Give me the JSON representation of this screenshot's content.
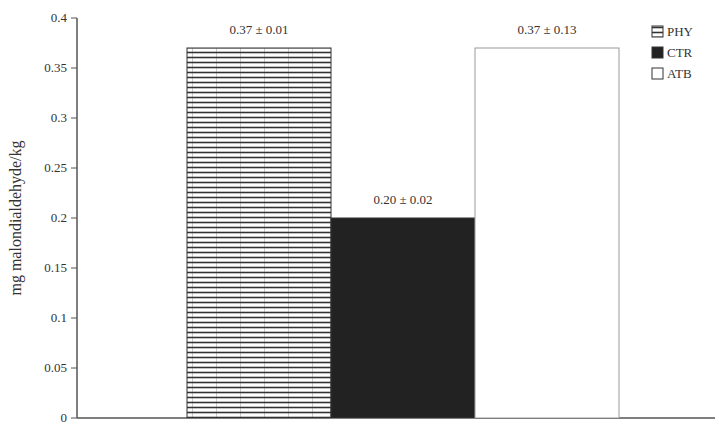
{
  "chart_data": {
    "type": "bar",
    "y_label": "mg malondialdehyde/kg",
    "categories": [
      "PHY",
      "CTR",
      "ATB"
    ],
    "values": [
      0.37,
      0.2,
      0.37
    ],
    "value_labels": [
      "0.37 ± 0.01",
      "0.20 ± 0.02",
      "0.37 ± 0.13"
    ],
    "colors": [
      "#333333",
      "#222222",
      "#ffffff"
    ],
    "ylim": [
      0,
      0.4
    ],
    "yticks": [
      0,
      0.05,
      0.1,
      0.15,
      0.2,
      0.25,
      0.3,
      0.35,
      0.4
    ],
    "data_labels": true,
    "legend": "top-right",
    "grid": false
  }
}
